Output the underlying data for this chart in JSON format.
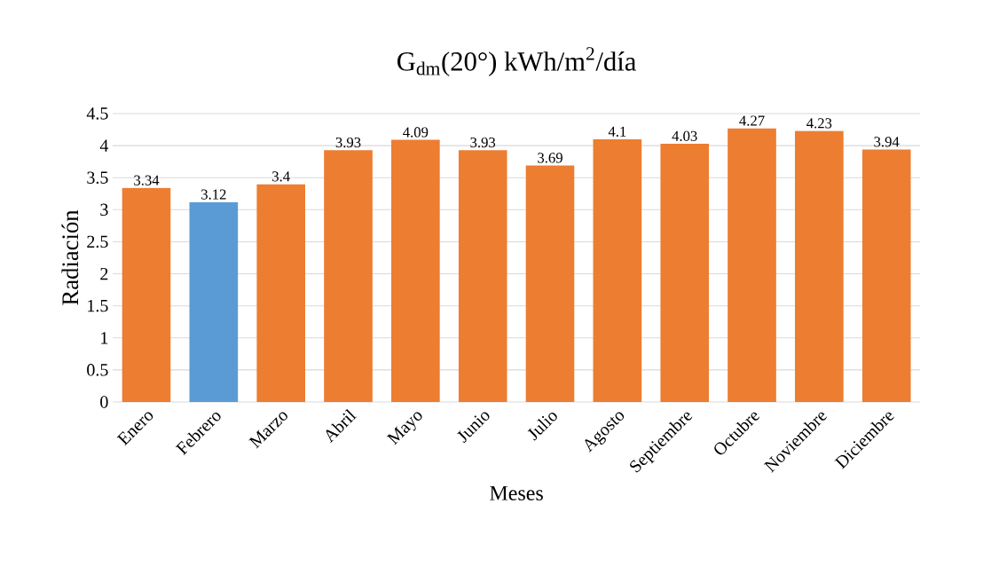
{
  "chart_data": {
    "type": "bar",
    "title": "G$_{dm}$(20°) kWh/m$^{2}$/día",
    "xlabel": "Meses",
    "ylabel": "Radiación",
    "categories": [
      "Enero",
      "Febrero",
      "Marzo",
      "Abril",
      "Mayo",
      "Junio",
      "Julio",
      "Agosto",
      "Septiembre",
      "Octubre",
      "Noviembre",
      "Diciembre"
    ],
    "values": [
      3.34,
      3.12,
      3.4,
      3.93,
      4.09,
      3.93,
      3.69,
      4.1,
      4.03,
      4.27,
      4.23,
      3.94
    ],
    "colors": [
      "#ed7d31",
      "#5b9bd5",
      "#ed7d31",
      "#ed7d31",
      "#ed7d31",
      "#ed7d31",
      "#ed7d31",
      "#ed7d31",
      "#ed7d31",
      "#ed7d31",
      "#ed7d31",
      "#ed7d31"
    ],
    "ylim": [
      0,
      4.5
    ],
    "yticks": [
      0,
      0.5,
      1,
      1.5,
      2,
      2.5,
      3,
      3.5,
      4,
      4.5
    ],
    "grid": "y",
    "data_labels": true
  }
}
